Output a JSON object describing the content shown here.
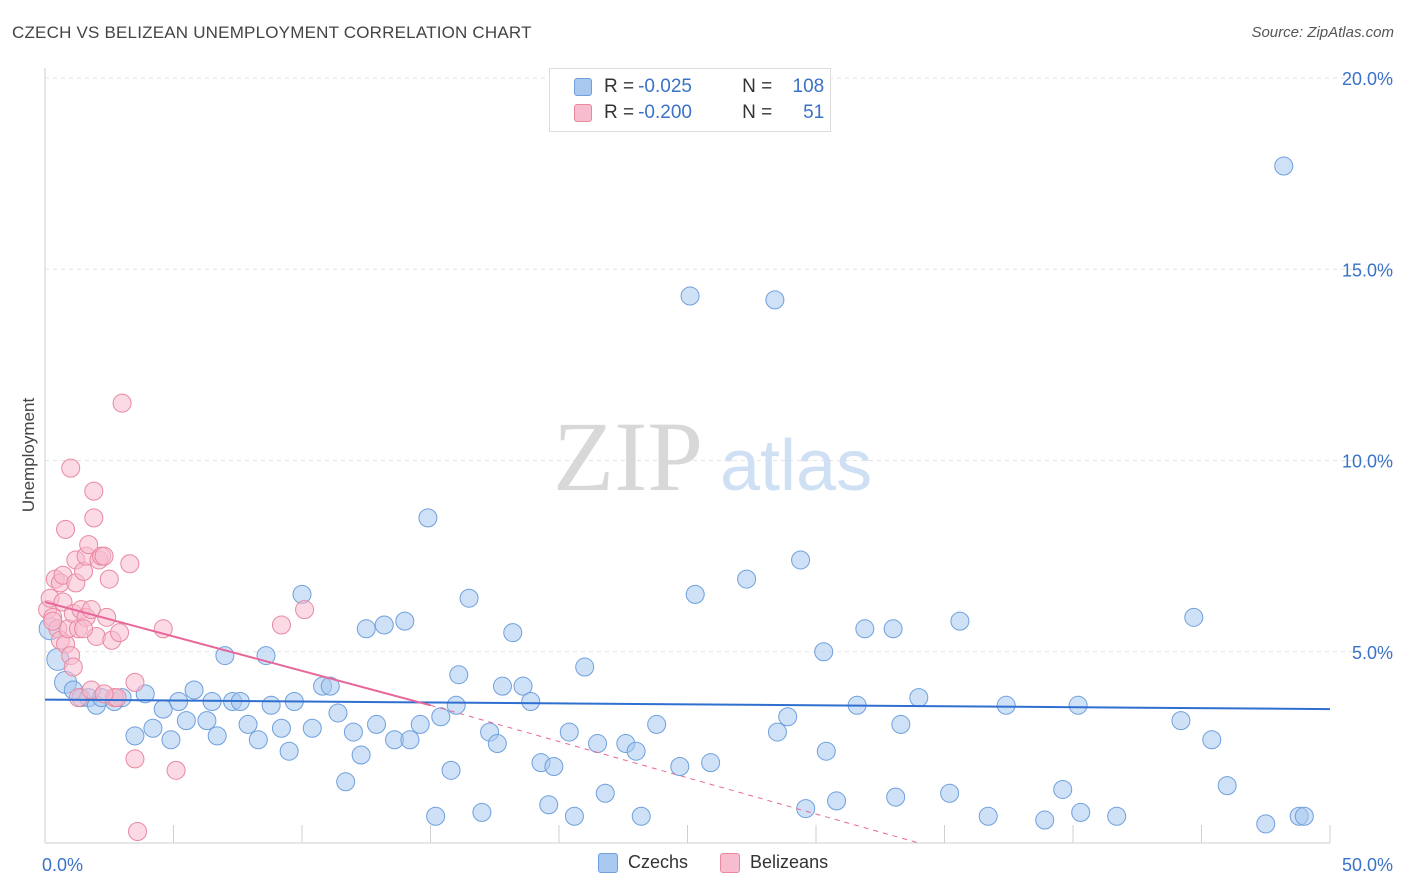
{
  "header": {
    "title": "CZECH VS BELIZEAN UNEMPLOYMENT CORRELATION CHART",
    "source": "Source: ZipAtlas.com"
  },
  "watermark": {
    "zip": "ZIP",
    "atlas": "atlas"
  },
  "legend_stats": [
    {
      "r_label": "R = ",
      "r_value": "-0.025",
      "n_label": "N = ",
      "n_value": "108",
      "color": "#a8c8f0",
      "border": "#6fa0dc"
    },
    {
      "r_label": "R = ",
      "r_value": "-0.200",
      "n_label": "N = ",
      "n_value": "51",
      "color": "#f8bccf",
      "border": "#e8899f"
    }
  ],
  "bottom_legend": [
    {
      "label": "Czechs",
      "color": "#a8c8f0",
      "border": "#6fa0dc"
    },
    {
      "label": "Belizeans",
      "color": "#f8bccf",
      "border": "#e8899f"
    }
  ],
  "chart_data": {
    "type": "scatter",
    "title": "CZECH VS BELIZEAN UNEMPLOYMENT CORRELATION CHART",
    "xlabel": "",
    "ylabel": "Unemployment",
    "xlim": [
      0,
      50
    ],
    "ylim": [
      0,
      20
    ],
    "x_tick_labels": [
      {
        "value": 0,
        "label": "0.0%"
      },
      {
        "value": 50,
        "label": "50.0%"
      }
    ],
    "y_tick_labels": [
      {
        "value": 5,
        "label": "5.0%"
      },
      {
        "value": 10,
        "label": "10.0%"
      },
      {
        "value": 15,
        "label": "15.0%"
      },
      {
        "value": 20,
        "label": "20.0%"
      }
    ],
    "grid": true,
    "series": [
      {
        "name": "Czechs",
        "color": "#a8c8f0",
        "stroke": "#6fa0dc",
        "trend": {
          "x": [
            0,
            50
          ],
          "y": [
            3.75,
            3.5
          ],
          "color": "#2f6fcf"
        },
        "points": [
          [
            0.2,
            5.6
          ],
          [
            0.5,
            4.8
          ],
          [
            0.8,
            4.2
          ],
          [
            1.1,
            4.0
          ],
          [
            1.4,
            3.8
          ],
          [
            1.7,
            3.8
          ],
          [
            2.0,
            3.6
          ],
          [
            2.2,
            3.8
          ],
          [
            2.7,
            3.7
          ],
          [
            3.0,
            3.8
          ],
          [
            3.5,
            2.8
          ],
          [
            3.9,
            3.9
          ],
          [
            4.2,
            3.0
          ],
          [
            4.6,
            3.5
          ],
          [
            4.9,
            2.7
          ],
          [
            5.2,
            3.7
          ],
          [
            5.5,
            3.2
          ],
          [
            5.8,
            4.0
          ],
          [
            6.3,
            3.2
          ],
          [
            6.5,
            3.7
          ],
          [
            6.7,
            2.8
          ],
          [
            7.0,
            4.9
          ],
          [
            7.3,
            3.7
          ],
          [
            7.6,
            3.7
          ],
          [
            7.9,
            3.1
          ],
          [
            8.3,
            2.7
          ],
          [
            8.6,
            4.9
          ],
          [
            8.8,
            3.6
          ],
          [
            9.2,
            3.0
          ],
          [
            9.5,
            2.4
          ],
          [
            9.7,
            3.7
          ],
          [
            10.0,
            6.5
          ],
          [
            10.4,
            3.0
          ],
          [
            10.8,
            4.1
          ],
          [
            11.1,
            4.1
          ],
          [
            11.4,
            3.4
          ],
          [
            11.7,
            1.6
          ],
          [
            12.0,
            2.9
          ],
          [
            12.3,
            2.3
          ],
          [
            12.5,
            5.6
          ],
          [
            12.9,
            3.1
          ],
          [
            13.2,
            5.7
          ],
          [
            13.6,
            2.7
          ],
          [
            14.0,
            5.8
          ],
          [
            14.2,
            2.7
          ],
          [
            14.6,
            3.1
          ],
          [
            14.9,
            8.5
          ],
          [
            15.2,
            0.7
          ],
          [
            15.4,
            3.3
          ],
          [
            15.8,
            1.9
          ],
          [
            16.1,
            4.4
          ],
          [
            16.0,
            3.6
          ],
          [
            16.5,
            6.4
          ],
          [
            17.0,
            0.8
          ],
          [
            17.3,
            2.9
          ],
          [
            17.8,
            4.1
          ],
          [
            17.6,
            2.6
          ],
          [
            18.2,
            5.5
          ],
          [
            18.6,
            4.1
          ],
          [
            18.9,
            3.7
          ],
          [
            19.3,
            2.1
          ],
          [
            19.6,
            1.0
          ],
          [
            19.8,
            2.0
          ],
          [
            20.4,
            2.9
          ],
          [
            20.6,
            0.7
          ],
          [
            21.0,
            4.6
          ],
          [
            21.5,
            2.6
          ],
          [
            21.8,
            1.3
          ],
          [
            22.6,
            2.6
          ],
          [
            23.0,
            2.4
          ],
          [
            23.2,
            0.7
          ],
          [
            23.8,
            3.1
          ],
          [
            24.7,
            2.0
          ],
          [
            25.1,
            14.3
          ],
          [
            25.3,
            6.5
          ],
          [
            25.9,
            2.1
          ],
          [
            27.3,
            6.9
          ],
          [
            28.4,
            14.2
          ],
          [
            28.5,
            2.9
          ],
          [
            28.9,
            3.3
          ],
          [
            29.4,
            7.4
          ],
          [
            29.6,
            0.9
          ],
          [
            30.3,
            5.0
          ],
          [
            30.4,
            2.4
          ],
          [
            30.8,
            1.1
          ],
          [
            31.6,
            3.6
          ],
          [
            31.9,
            5.6
          ],
          [
            33.1,
            1.2
          ],
          [
            33.0,
            5.6
          ],
          [
            33.3,
            3.1
          ],
          [
            34.0,
            3.8
          ],
          [
            35.2,
            1.3
          ],
          [
            35.6,
            5.8
          ],
          [
            36.7,
            0.7
          ],
          [
            37.4,
            3.6
          ],
          [
            38.9,
            0.6
          ],
          [
            39.6,
            1.4
          ],
          [
            40.3,
            0.8
          ],
          [
            41.7,
            0.7
          ],
          [
            44.2,
            3.2
          ],
          [
            44.7,
            5.9
          ],
          [
            45.4,
            2.7
          ],
          [
            46.0,
            1.5
          ],
          [
            47.5,
            0.5
          ],
          [
            48.2,
            17.7
          ],
          [
            48.8,
            0.7
          ],
          [
            49.0,
            0.7
          ],
          [
            40.2,
            3.6
          ]
        ]
      },
      {
        "name": "Belizeans",
        "color": "#f8bccf",
        "stroke": "#e8899f",
        "trend": {
          "x": [
            0,
            15
          ],
          "y": [
            6.3,
            3.6
          ],
          "dash_to": [
            34,
            0.0
          ],
          "color": "#e8679a"
        },
        "points": [
          [
            0.1,
            6.1
          ],
          [
            0.2,
            6.4
          ],
          [
            0.3,
            5.9
          ],
          [
            0.4,
            6.9
          ],
          [
            0.5,
            5.6
          ],
          [
            0.6,
            6.8
          ],
          [
            0.6,
            5.3
          ],
          [
            0.7,
            7.0
          ],
          [
            0.7,
            6.3
          ],
          [
            0.8,
            8.2
          ],
          [
            0.8,
            5.2
          ],
          [
            0.9,
            5.6
          ],
          [
            1.0,
            9.8
          ],
          [
            1.0,
            4.9
          ],
          [
            1.1,
            6.0
          ],
          [
            1.1,
            4.6
          ],
          [
            1.2,
            6.8
          ],
          [
            1.2,
            7.4
          ],
          [
            1.3,
            5.6
          ],
          [
            1.3,
            3.8
          ],
          [
            1.4,
            6.1
          ],
          [
            1.5,
            7.1
          ],
          [
            1.6,
            7.5
          ],
          [
            1.6,
            5.9
          ],
          [
            1.7,
            7.8
          ],
          [
            1.8,
            6.1
          ],
          [
            1.8,
            4.0
          ],
          [
            1.9,
            8.5
          ],
          [
            1.9,
            9.2
          ],
          [
            2.0,
            5.4
          ],
          [
            2.1,
            7.4
          ],
          [
            2.2,
            7.5
          ],
          [
            2.3,
            7.5
          ],
          [
            2.4,
            5.9
          ],
          [
            2.5,
            6.9
          ],
          [
            2.6,
            5.3
          ],
          [
            2.7,
            3.8
          ],
          [
            2.8,
            3.8
          ],
          [
            2.9,
            5.5
          ],
          [
            3.0,
            11.5
          ],
          [
            3.3,
            7.3
          ],
          [
            3.5,
            4.2
          ],
          [
            3.5,
            2.2
          ],
          [
            3.6,
            0.3
          ],
          [
            4.6,
            5.6
          ],
          [
            5.1,
            1.9
          ],
          [
            9.2,
            5.7
          ],
          [
            10.1,
            6.1
          ],
          [
            0.3,
            5.8
          ],
          [
            1.5,
            5.6
          ],
          [
            2.3,
            3.9
          ]
        ]
      }
    ]
  }
}
